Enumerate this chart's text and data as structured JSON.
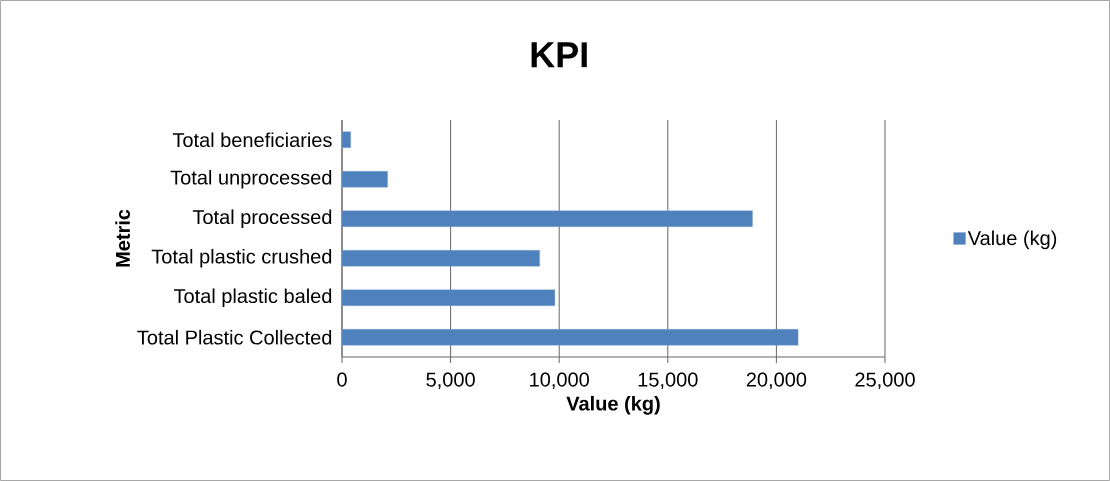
{
  "chart_data": {
    "type": "bar",
    "orientation": "horizontal",
    "title": "KPI",
    "xlabel": "Value (kg)",
    "ylabel": "Metric",
    "categories": [
      "Total beneficiaries",
      "Total unprocessed",
      "Total processed",
      "Total plastic crushed",
      "Total plastic baled",
      "Total Plastic Collected"
    ],
    "series": [
      {
        "name": "Value (kg)",
        "color": "#4f81bd",
        "values": [
          400,
          2100,
          18900,
          9100,
          9800,
          21000
        ]
      }
    ],
    "xlim": [
      0,
      25000
    ],
    "xticks": [
      0,
      {
        "value": 5000,
        "label": "5,000"
      },
      {
        "value": 10000,
        "label": "10,000"
      },
      {
        "value": 15000,
        "label": "15,000"
      },
      {
        "value": 20000,
        "label": "20,000"
      },
      {
        "value": 25000,
        "label": "25,000"
      }
    ],
    "grid": "x",
    "legend": "right"
  }
}
